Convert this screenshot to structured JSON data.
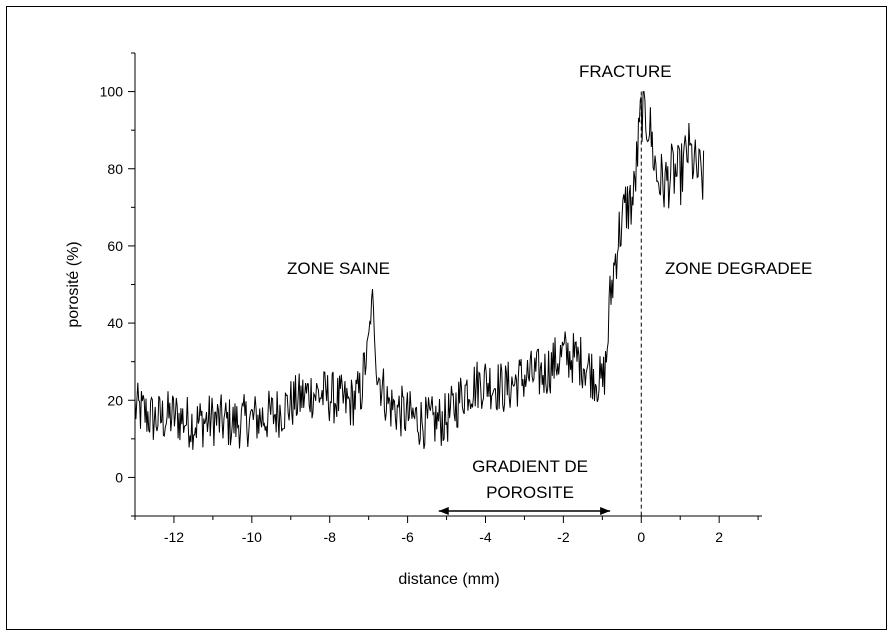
{
  "chart_data": {
    "type": "line",
    "xlabel": "distance (mm)",
    "ylabel": "porosité (%)",
    "xlim": [
      -13,
      3.1
    ],
    "ylim": [
      -10,
      110
    ],
    "xticks": [
      -12,
      -10,
      -8,
      -6,
      -4,
      -2,
      0,
      2
    ],
    "xtick_labels": [
      "-12",
      "-10",
      "-8",
      "-6",
      "-4",
      "-2",
      "0",
      "2"
    ],
    "yticks": [
      0,
      20,
      40,
      60,
      80,
      100
    ],
    "ytick_labels": [
      "0",
      "20",
      "40",
      "60",
      "80",
      "100"
    ],
    "grid": false,
    "annotations": {
      "zone_saine": "ZONE SAINE",
      "fracture": "FRACTURE",
      "zone_degradee": "ZONE DEGRADEE",
      "gradient_line1": "GRADIENT  DE",
      "gradient_line2": "POROSITE"
    },
    "gradient_arrow": {
      "x_start": -5.2,
      "x_end": -0.8
    },
    "fracture_line_x": 0,
    "series": [
      {
        "x": [
          -13,
          -12.5,
          -12,
          -11.5,
          -11,
          -10.5,
          -10,
          -9.5,
          -9,
          -8.5,
          -8,
          -7.5,
          -7.2,
          -7,
          -6.9,
          -6.8,
          -6.5,
          -6,
          -5.5,
          -5,
          -4.5,
          -4,
          -3.5,
          -3,
          -2.5,
          -2,
          -1.5,
          -1,
          -0.9,
          -0.8,
          -0.6,
          -0.4,
          -0.2,
          0,
          0.2,
          0.4,
          0.6,
          0.8,
          1,
          1.2,
          1.4,
          1.6
        ],
        "values": [
          18,
          15,
          16,
          14,
          15,
          14,
          15,
          16,
          19,
          22,
          21,
          19,
          22,
          36,
          47,
          28,
          19,
          16,
          14,
          15,
          23,
          25,
          23,
          26,
          27,
          32,
          30,
          24,
          30,
          46,
          62,
          70,
          72,
          95,
          92,
          78,
          76,
          79,
          78,
          85,
          80,
          77
        ]
      }
    ]
  }
}
